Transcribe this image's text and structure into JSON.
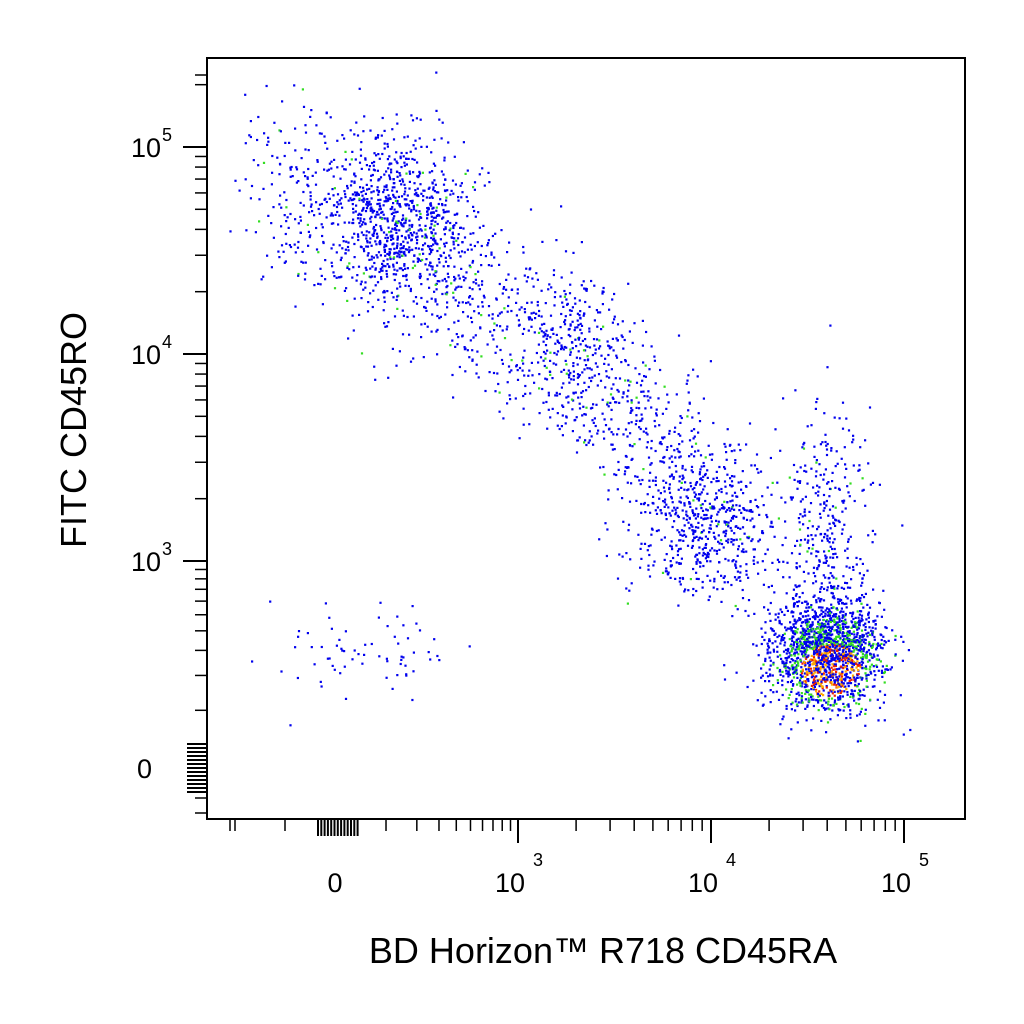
{
  "chart_data": {
    "type": "scatter",
    "title": "",
    "xlabel": "BD Horizon™ R718  CD45RA",
    "ylabel": "FITC  CD45RO",
    "x_scale": "biexponential",
    "y_scale": "biexponential",
    "xlim": [
      -300,
      160000
    ],
    "ylim": [
      -150,
      250000
    ],
    "x_ticks": [
      {
        "base": "0",
        "exp": "",
        "value": 0
      },
      {
        "base": "10",
        "exp": "3",
        "value": 1000
      },
      {
        "base": "10",
        "exp": "4",
        "value": 10000
      },
      {
        "base": "10",
        "exp": "5",
        "value": 100000
      }
    ],
    "y_ticks": [
      {
        "base": "0",
        "exp": "",
        "value": 0
      },
      {
        "base": "10",
        "exp": "3",
        "value": 1000
      },
      {
        "base": "10",
        "exp": "4",
        "value": 10000
      },
      {
        "base": "10",
        "exp": "5",
        "value": 100000
      }
    ],
    "grid": false,
    "legend": "none",
    "density_colors": [
      "#0000ee",
      "#33dd22",
      "#ee2200",
      "#ffaa00"
    ],
    "populations": [
      {
        "x_center": 150,
        "y_center": 45000,
        "count": 700
      },
      {
        "x_center": 1000,
        "y_center": 25000,
        "count": 900
      },
      {
        "x_center": 3500,
        "y_center": 5000,
        "count": 600
      },
      {
        "x_center": 9000,
        "y_center": 1500,
        "count": 400
      },
      {
        "x_center": 40000,
        "y_center": 300,
        "count": 1800
      },
      {
        "x_center": 40000,
        "y_center": 1500,
        "count": 300
      },
      {
        "x_center": 60,
        "y_center": 300,
        "count": 70
      }
    ]
  }
}
